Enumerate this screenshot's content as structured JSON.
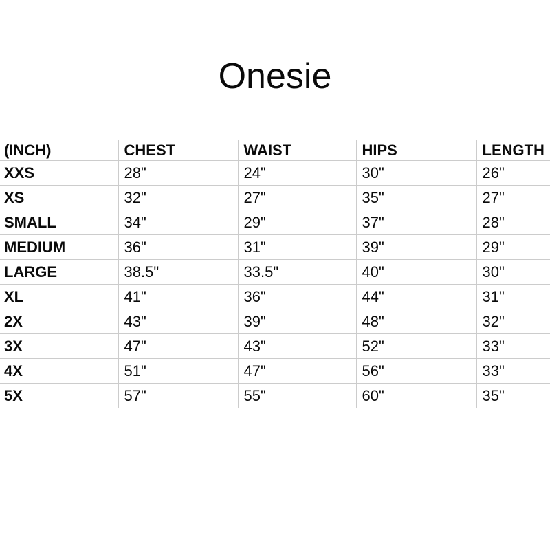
{
  "page": {
    "background_color": "#ffffff",
    "text_color": "#0a0a0a",
    "border_color": "#cccccc"
  },
  "chart_data": {
    "type": "table",
    "title": "Onesie",
    "unit_label": "(INCH)",
    "columns": [
      "(INCH)",
      "CHEST",
      "WAIST",
      "HIPS",
      "LENGTH"
    ],
    "rows": [
      [
        "XXS",
        "28\"",
        "24\"",
        "30\"",
        "26\""
      ],
      [
        "XS",
        "32\"",
        "27\"",
        "35\"",
        "27\""
      ],
      [
        "SMALL",
        "34\"",
        "29\"",
        "37\"",
        "28\""
      ],
      [
        "MEDIUM",
        "36\"",
        "31\"",
        "39\"",
        "29\""
      ],
      [
        "LARGE",
        "38.5\"",
        "33.5\"",
        "40\"",
        "30\""
      ],
      [
        "XL",
        "41\"",
        "36\"",
        "44\"",
        "31\""
      ],
      [
        "2X",
        "43\"",
        "39\"",
        "48\"",
        "32\""
      ],
      [
        "3X",
        "47\"",
        "43\"",
        "52\"",
        "33\""
      ],
      [
        "4X",
        "51\"",
        "47\"",
        "56\"",
        "33\""
      ],
      [
        "5X",
        "57\"",
        "55\"",
        "60\"",
        "35\""
      ]
    ]
  }
}
